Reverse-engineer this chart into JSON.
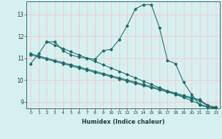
{
  "xlabel": "Humidex (Indice chaleur)",
  "background_color": "#d6f0f0",
  "grid_color": "#f5c8c8",
  "line_color": "#1a6b6b",
  "xlim": [
    -0.5,
    23.5
  ],
  "ylim": [
    8.7,
    13.6
  ],
  "yticks": [
    9,
    10,
    11,
    12,
    13
  ],
  "xticks": [
    0,
    1,
    2,
    3,
    4,
    5,
    6,
    7,
    8,
    9,
    10,
    11,
    12,
    13,
    14,
    15,
    16,
    17,
    18,
    19,
    20,
    21,
    22,
    23
  ],
  "series": [
    {
      "x": [
        0,
        1,
        2,
        3,
        4,
        5,
        6,
        7,
        8,
        9,
        10,
        11,
        12,
        13,
        14,
        15,
        16,
        17,
        18,
        19,
        20,
        21,
        22,
        23
      ],
      "y": [
        10.75,
        11.2,
        11.75,
        11.75,
        11.35,
        11.15,
        11.05,
        11.0,
        10.95,
        11.35,
        11.4,
        11.85,
        12.5,
        13.25,
        13.45,
        13.45,
        12.4,
        10.9,
        10.75,
        9.9,
        9.35,
        8.85,
        8.75,
        8.75
      ]
    },
    {
      "x": [
        0,
        1,
        2,
        3,
        4,
        5,
        6,
        7,
        8,
        9,
        10,
        11,
        12,
        13,
        14,
        15,
        16,
        17,
        18,
        19,
        20,
        21,
        22,
        23
      ],
      "y": [
        11.2,
        11.1,
        11.0,
        10.9,
        10.8,
        10.7,
        10.6,
        10.5,
        10.4,
        10.3,
        10.2,
        10.1,
        10.0,
        9.9,
        9.8,
        9.7,
        9.6,
        9.5,
        9.4,
        9.3,
        9.2,
        9.1,
        8.85,
        8.75
      ]
    },
    {
      "x": [
        0,
        1,
        2,
        3,
        4,
        5,
        6,
        7,
        8,
        9,
        10,
        11,
        12,
        13,
        14,
        15,
        16,
        17,
        18,
        19,
        20,
        21,
        22,
        23
      ],
      "y": [
        11.15,
        11.05,
        10.95,
        10.85,
        10.75,
        10.65,
        10.55,
        10.45,
        10.35,
        10.25,
        10.15,
        10.05,
        9.95,
        9.85,
        9.75,
        9.65,
        9.55,
        9.45,
        9.35,
        9.25,
        9.15,
        9.05,
        8.8,
        8.7
      ]
    },
    {
      "x": [
        2,
        3,
        4,
        5,
        6,
        7,
        8,
        9,
        10,
        11,
        12,
        13,
        14,
        15,
        16,
        17,
        18,
        19,
        20,
        21,
        22,
        23
      ],
      "y": [
        11.75,
        11.6,
        11.45,
        11.3,
        11.15,
        11.0,
        10.85,
        10.7,
        10.55,
        10.4,
        10.25,
        10.1,
        9.95,
        9.8,
        9.65,
        9.5,
        9.35,
        9.2,
        9.05,
        8.9,
        8.75,
        8.7
      ]
    }
  ]
}
